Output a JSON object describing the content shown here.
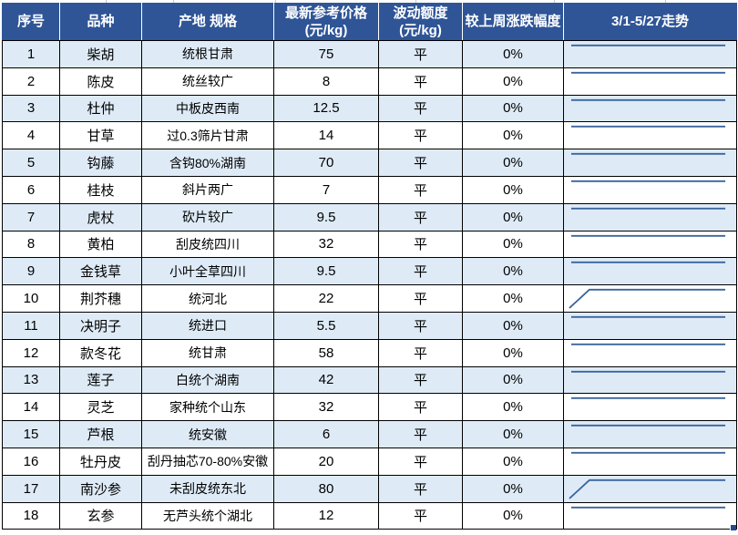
{
  "header": {
    "col_index": "序号",
    "col_variety": "品种",
    "col_origin_spec": "产地 规格",
    "col_price_line1": "最新参考价格",
    "col_price_line2": "(元/kg)",
    "col_fluctuation_line1": "波动额度",
    "col_fluctuation_line2": "(元/kg)",
    "col_weekly_change": "较上周涨跌幅度",
    "col_trend": "3/1-5/27走势"
  },
  "rows": [
    {
      "index": "1",
      "variety": "柴胡",
      "origin_spec": "统根甘肃",
      "price": "75",
      "fluctuation": "平",
      "weekly_change": "0%",
      "trend": "flat"
    },
    {
      "index": "2",
      "variety": "陈皮",
      "origin_spec": "统丝较广",
      "price": "8",
      "fluctuation": "平",
      "weekly_change": "0%",
      "trend": "flat"
    },
    {
      "index": "3",
      "variety": "杜仲",
      "origin_spec": "中板皮西南",
      "price": "12.5",
      "fluctuation": "平",
      "weekly_change": "0%",
      "trend": "flat"
    },
    {
      "index": "4",
      "variety": "甘草",
      "origin_spec": "过0.3筛片甘肃",
      "price": "14",
      "fluctuation": "平",
      "weekly_change": "0%",
      "trend": "flat"
    },
    {
      "index": "5",
      "variety": "钩藤",
      "origin_spec": "含钩80%湖南",
      "price": "70",
      "fluctuation": "平",
      "weekly_change": "0%",
      "trend": "flat"
    },
    {
      "index": "6",
      "variety": "桂枝",
      "origin_spec": "斜片两广",
      "price": "7",
      "fluctuation": "平",
      "weekly_change": "0%",
      "trend": "flat"
    },
    {
      "index": "7",
      "variety": "虎杖",
      "origin_spec": "砍片较广",
      "price": "9.5",
      "fluctuation": "平",
      "weekly_change": "0%",
      "trend": "flat"
    },
    {
      "index": "8",
      "variety": "黄柏",
      "origin_spec": "刮皮统四川",
      "price": "32",
      "fluctuation": "平",
      "weekly_change": "0%",
      "trend": "flat"
    },
    {
      "index": "9",
      "variety": "金钱草",
      "origin_spec": "小叶全草四川",
      "price": "9.5",
      "fluctuation": "平",
      "weekly_change": "0%",
      "trend": "flat"
    },
    {
      "index": "10",
      "variety": "荆芥穗",
      "origin_spec": "统河北",
      "price": "22",
      "fluctuation": "平",
      "weekly_change": "0%",
      "trend": "rise"
    },
    {
      "index": "11",
      "variety": "决明子",
      "origin_spec": "统进口",
      "price": "5.5",
      "fluctuation": "平",
      "weekly_change": "0%",
      "trend": "flat"
    },
    {
      "index": "12",
      "variety": "款冬花",
      "origin_spec": "统甘肃",
      "price": "58",
      "fluctuation": "平",
      "weekly_change": "0%",
      "trend": "flat"
    },
    {
      "index": "13",
      "variety": "莲子",
      "origin_spec": "白统个湖南",
      "price": "42",
      "fluctuation": "平",
      "weekly_change": "0%",
      "trend": "flat"
    },
    {
      "index": "14",
      "variety": "灵芝",
      "origin_spec": "家种统个山东",
      "price": "32",
      "fluctuation": "平",
      "weekly_change": "0%",
      "trend": "flat"
    },
    {
      "index": "15",
      "variety": "芦根",
      "origin_spec": "统安徽",
      "price": "6",
      "fluctuation": "平",
      "weekly_change": "0%",
      "trend": "flat"
    },
    {
      "index": "16",
      "variety": "牡丹皮",
      "origin_spec": "刮丹抽芯70-80%安徽",
      "price": "20",
      "fluctuation": "平",
      "weekly_change": "0%",
      "trend": "flat"
    },
    {
      "index": "17",
      "variety": "南沙参",
      "origin_spec": "未刮皮统东北",
      "price": "80",
      "fluctuation": "平",
      "weekly_change": "0%",
      "trend": "rise"
    },
    {
      "index": "18",
      "variety": "玄参",
      "origin_spec": "无芦头统个湖北",
      "price": "12",
      "fluctuation": "平",
      "weekly_change": "0%",
      "trend": "flat"
    }
  ],
  "sparklines": {
    "flat": "8,5 178,5",
    "rise": "6,26 28,5 178,5"
  },
  "colors": {
    "header_bg": "#2F5597",
    "header_text": "#FFFFFF",
    "header_separator": "#FFFFFF",
    "row_bg": "#FFFFFF",
    "row_alt_bg": "#DEEBF7",
    "grid_border": "#000000",
    "sparkline": "#3A659E",
    "fill_handle": "#24478F",
    "cell_text": "#000000"
  }
}
